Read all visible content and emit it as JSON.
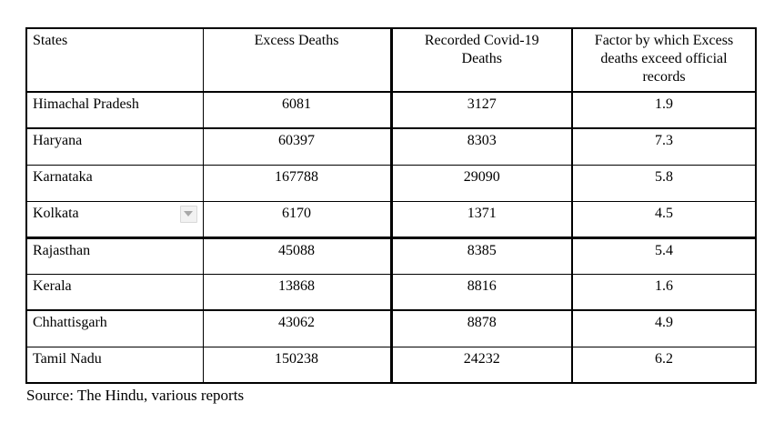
{
  "table": {
    "headers": {
      "states": "States",
      "excess": "Excess Deaths",
      "recorded": "Recorded Covid-19 Deaths",
      "factor": "Factor by which Excess deaths exceed official records"
    },
    "rows": [
      {
        "state": "Himachal Pradesh",
        "excess": "6081",
        "recorded": "3127",
        "factor": "1.9"
      },
      {
        "state": "Haryana",
        "excess": "60397",
        "recorded": "8303",
        "factor": "7.3"
      },
      {
        "state": "Karnataka",
        "excess": "167788",
        "recorded": "29090",
        "factor": "5.8"
      },
      {
        "state": "Kolkata",
        "excess": "6170",
        "recorded": "1371",
        "factor": "4.5"
      },
      {
        "state": "Rajasthan",
        "excess": "45088",
        "recorded": "8385",
        "factor": "5.4"
      },
      {
        "state": "Kerala",
        "excess": "13868",
        "recorded": "8816",
        "factor": "1.6"
      },
      {
        "state": "Chhattisgarh",
        "excess": "43062",
        "recorded": "8878",
        "factor": "4.9"
      },
      {
        "state": "Tamil Nadu",
        "excess": "150238",
        "recorded": "24232",
        "factor": "6.2"
      }
    ]
  },
  "icons": {
    "kolkata_dropdown": "dropdown-arrow"
  },
  "source_note": "Source: The Hindu, various reports",
  "colors": {
    "text": "#000000",
    "border": "#000000",
    "dropdown_bg": "#f2f2f2",
    "dropdown_border": "#d9d9d9",
    "dropdown_arrow": "#a8a8a8"
  }
}
